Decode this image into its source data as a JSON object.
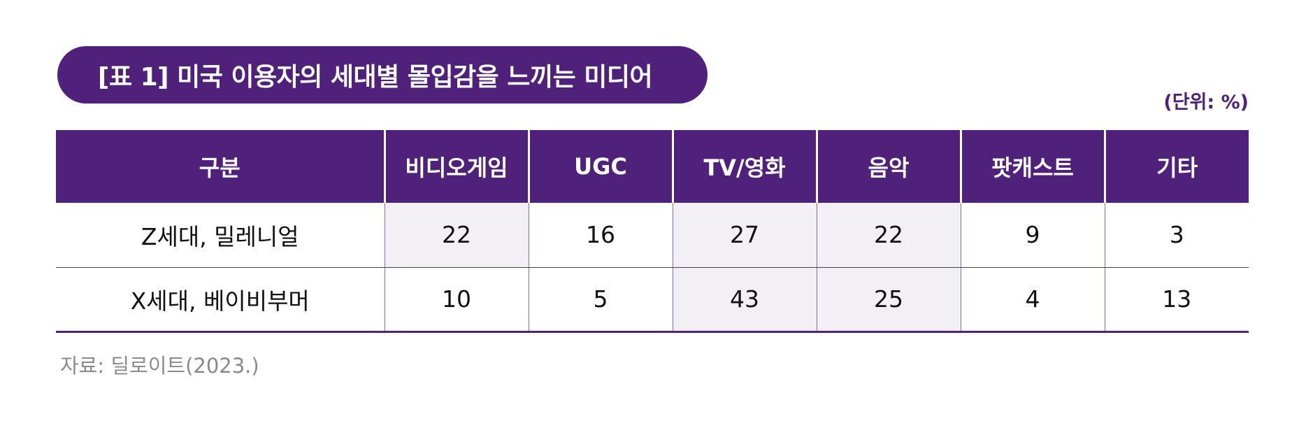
{
  "title": "[표 1] 미국 이용자의 세대별 몰입감을 느끼는 미디어",
  "unit": "(단위: %)",
  "table": {
    "headers": [
      "구분",
      "비디오게임",
      "UGC",
      "TV/영화",
      "음악",
      "팟캐스트",
      "기타"
    ],
    "rows": [
      {
        "label": "Z세대, 밀레니얼",
        "values": [
          "22",
          "16",
          "27",
          "22",
          "9",
          "3"
        ]
      },
      {
        "label": "X세대, 베이비부머",
        "values": [
          "10",
          "5",
          "43",
          "25",
          "4",
          "13"
        ]
      }
    ]
  },
  "source": "자료: 딜로이트(2023.)",
  "colors": {
    "accent": "#4f217a",
    "cell_shade": "#f2eff5",
    "source_text": "#8a8a8a"
  }
}
